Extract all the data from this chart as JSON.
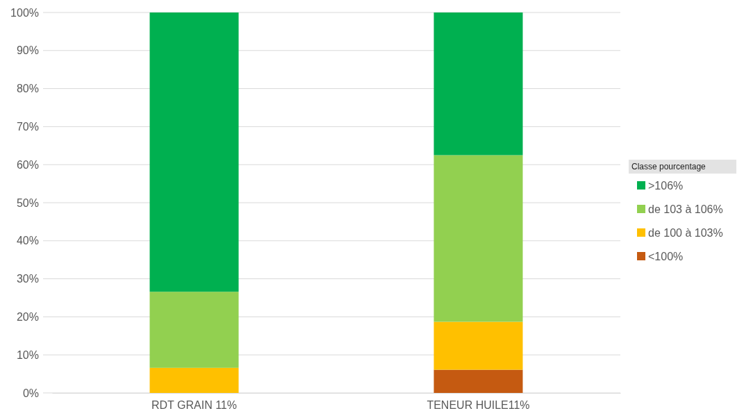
{
  "chart_data": {
    "type": "bar",
    "stacked": true,
    "categories": [
      "RDT GRAIN 11%",
      "TENEUR HUILE11%"
    ],
    "series": [
      {
        "name": "<100%",
        "color": "#c55a11",
        "values": [
          0,
          6.1
        ]
      },
      {
        "name": "de 100 à 103%",
        "color": "#ffc000",
        "values": [
          6.6,
          12.6
        ]
      },
      {
        "name": "de 103 à 106%",
        "color": "#92d050",
        "values": [
          20,
          43.8
        ]
      },
      {
        "name": ">106%",
        "color": "#00b050",
        "values": [
          73.4,
          37.5
        ]
      }
    ],
    "ylim": [
      0,
      100
    ],
    "yticks": [
      {
        "value": 0,
        "label": "0%"
      },
      {
        "value": 10,
        "label": "10%"
      },
      {
        "value": 20,
        "label": "20%"
      },
      {
        "value": 30,
        "label": "30%"
      },
      {
        "value": 40,
        "label": "40%"
      },
      {
        "value": 50,
        "label": "50%"
      },
      {
        "value": 60,
        "label": "60%"
      },
      {
        "value": 70,
        "label": "70%"
      },
      {
        "value": 80,
        "label": "80%"
      },
      {
        "value": 90,
        "label": "90%"
      },
      {
        "value": 100,
        "label": "100%"
      }
    ],
    "grid": "y",
    "legend": "right",
    "legend_title": "Classe pourcentage"
  }
}
